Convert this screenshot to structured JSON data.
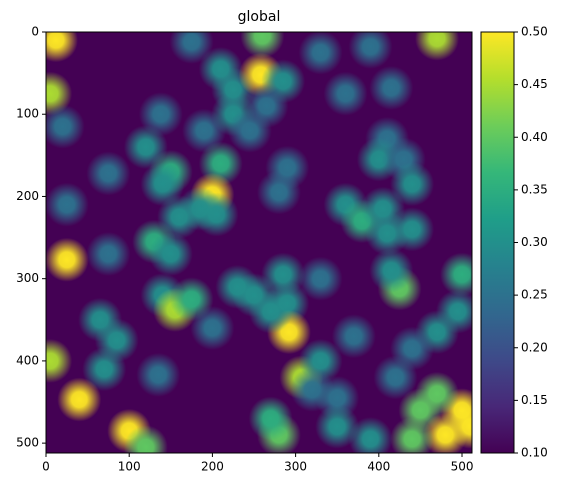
{
  "chart_data": {
    "type": "heatmap",
    "title": "global",
    "colormap": "viridis",
    "xlim": [
      0,
      512
    ],
    "ylim": [
      512,
      0
    ],
    "xticks": [
      0,
      100,
      200,
      300,
      400,
      500
    ],
    "yticks": [
      0,
      100,
      200,
      300,
      400,
      500
    ],
    "clim": [
      0.1,
      0.5
    ],
    "cticks": [
      {
        "value": 0.1,
        "label": "0.10"
      },
      {
        "value": 0.15,
        "label": "0.15"
      },
      {
        "value": 0.2,
        "label": "0.20"
      },
      {
        "value": 0.25,
        "label": "0.25"
      },
      {
        "value": 0.3,
        "label": "0.30"
      },
      {
        "value": 0.35,
        "label": "0.35"
      },
      {
        "value": 0.4,
        "label": "0.40"
      },
      {
        "value": 0.45,
        "label": "0.45"
      },
      {
        "value": 0.5,
        "label": "0.50"
      }
    ],
    "x": [
      12,
      5,
      20,
      175,
      260,
      470,
      330,
      390,
      210,
      225,
      258,
      285,
      265,
      360,
      415,
      138,
      190,
      225,
      245,
      120,
      150,
      140,
      75,
      210,
      200,
      185,
      160,
      205,
      290,
      280,
      410,
      400,
      430,
      440,
      360,
      380,
      405,
      410,
      440,
      25,
      130,
      150,
      25,
      75,
      140,
      155,
      175,
      200,
      230,
      250,
      285,
      290,
      292,
      270,
      330,
      425,
      415,
      500,
      495,
      470,
      440,
      370,
      65,
      85,
      70,
      5,
      40,
      135,
      307,
      330,
      320,
      350,
      350,
      420,
      280,
      270,
      100,
      120,
      450,
      480,
      500,
      470,
      510,
      440,
      390
    ],
    "y": [
      10,
      75,
      115,
      12,
      5,
      8,
      25,
      18,
      45,
      70,
      52,
      60,
      90,
      75,
      68,
      100,
      120,
      100,
      120,
      140,
      170,
      185,
      172,
      160,
      198,
      215,
      225,
      222,
      165,
      195,
      130,
      155,
      155,
      185,
      210,
      230,
      215,
      245,
      240,
      210,
      255,
      270,
      277,
      270,
      320,
      338,
      325,
      360,
      310,
      320,
      295,
      330,
      365,
      340,
      300,
      312,
      290,
      295,
      340,
      365,
      385,
      370,
      350,
      375,
      410,
      400,
      447,
      417,
      420,
      400,
      435,
      445,
      480,
      420,
      490,
      470,
      485,
      505,
      460,
      490,
      460,
      440,
      480,
      495,
      495
    ],
    "values": [
      0.5,
      0.45,
      0.25,
      0.25,
      0.4,
      0.45,
      0.25,
      0.25,
      0.3,
      0.3,
      0.5,
      0.3,
      0.25,
      0.25,
      0.25,
      0.25,
      0.25,
      0.3,
      0.25,
      0.3,
      0.35,
      0.3,
      0.25,
      0.35,
      0.5,
      0.3,
      0.3,
      0.3,
      0.25,
      0.25,
      0.25,
      0.3,
      0.25,
      0.3,
      0.3,
      0.35,
      0.3,
      0.3,
      0.3,
      0.25,
      0.35,
      0.3,
      0.5,
      0.25,
      0.3,
      0.45,
      0.35,
      0.25,
      0.3,
      0.3,
      0.3,
      0.3,
      0.5,
      0.3,
      0.25,
      0.4,
      0.3,
      0.35,
      0.3,
      0.3,
      0.25,
      0.25,
      0.3,
      0.3,
      0.3,
      0.45,
      0.5,
      0.25,
      0.45,
      0.3,
      0.25,
      0.25,
      0.3,
      0.25,
      0.4,
      0.35,
      0.5,
      0.4,
      0.4,
      0.5,
      0.5,
      0.4,
      0.5,
      0.4,
      0.3
    ]
  }
}
